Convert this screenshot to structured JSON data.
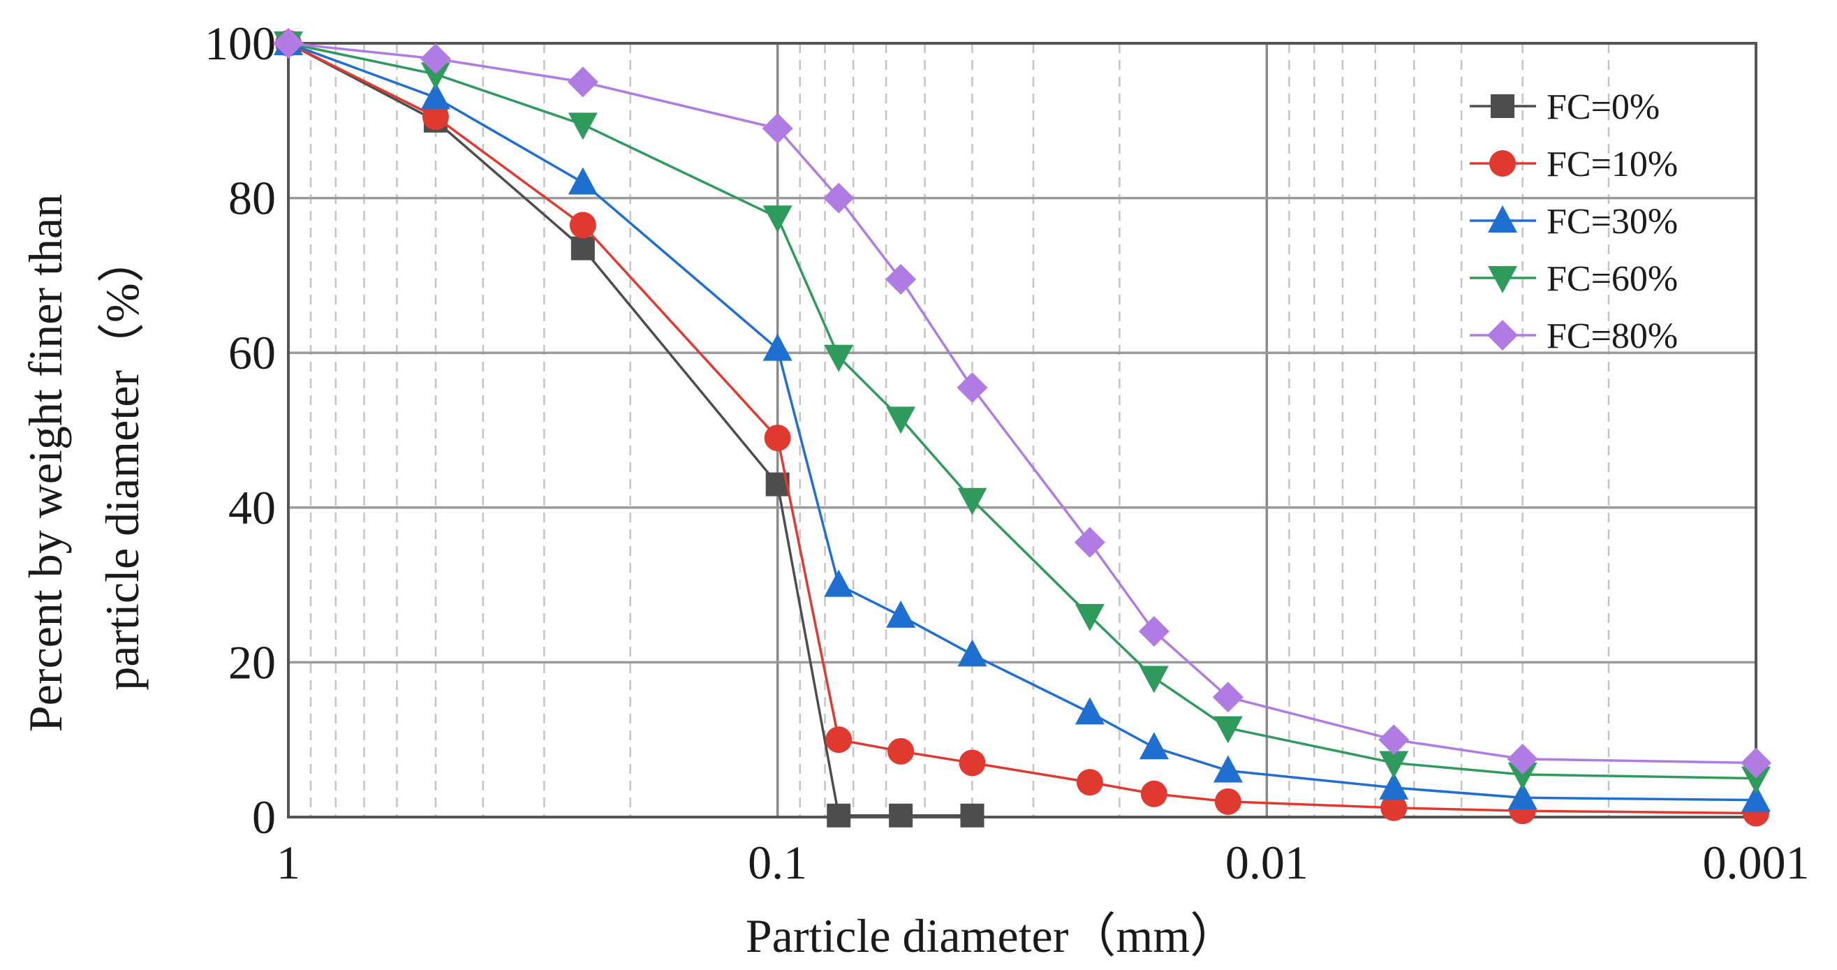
{
  "chart_data": {
    "type": "line",
    "xscale": "log",
    "xlim": [
      1,
      0.001
    ],
    "ylim": [
      0,
      100
    ],
    "x_reversed": true,
    "xlabel": "Particle diameter（mm）",
    "ylabel_lines": [
      "Percent by weight finer than",
      "particle diameter（%）"
    ],
    "x_ticks": [
      {
        "value": 1,
        "label": "1"
      },
      {
        "value": 0.1,
        "label": "0.1"
      },
      {
        "value": 0.01,
        "label": "0.01"
      },
      {
        "value": 0.001,
        "label": "0.001"
      }
    ],
    "y_ticks": [
      {
        "value": 0,
        "label": "0"
      },
      {
        "value": 20,
        "label": "20"
      },
      {
        "value": 40,
        "label": "40"
      },
      {
        "value": 60,
        "label": "60"
      },
      {
        "value": 80,
        "label": "80"
      },
      {
        "value": 100,
        "label": "100"
      }
    ],
    "grid": true,
    "legend_position": "top-right",
    "series": [
      {
        "name": "FC=0%",
        "color": "#4d4d4d",
        "marker": "square",
        "x": [
          1,
          0.5,
          0.25,
          0.1,
          0.075,
          0.056,
          0.04
        ],
        "y": [
          100,
          90,
          73.5,
          43,
          0.2,
          0.2,
          0.2
        ]
      },
      {
        "name": "FC=10%",
        "color": "#e03a30",
        "marker": "circle",
        "x": [
          1,
          0.5,
          0.25,
          0.1,
          0.075,
          0.056,
          0.04,
          0.023,
          0.017,
          0.012,
          0.0055,
          0.003,
          0.001
        ],
        "y": [
          100,
          90.5,
          76.5,
          49,
          10,
          8.5,
          7,
          4.5,
          3,
          2,
          1.2,
          0.8,
          0.5
        ]
      },
      {
        "name": "FC=30%",
        "color": "#1f6fd0",
        "marker": "triangle-up",
        "x": [
          1,
          0.5,
          0.25,
          0.1,
          0.075,
          0.056,
          0.04,
          0.023,
          0.017,
          0.012,
          0.0055,
          0.003,
          0.001
        ],
        "y": [
          100,
          93,
          82,
          60.5,
          30,
          26,
          21,
          13.5,
          9,
          6,
          3.8,
          2.5,
          2.2
        ]
      },
      {
        "name": "FC=60%",
        "color": "#2e9b5c",
        "marker": "triangle-down",
        "x": [
          1,
          0.5,
          0.25,
          0.1,
          0.075,
          0.056,
          0.04,
          0.023,
          0.017,
          0.012,
          0.0055,
          0.003,
          0.001
        ],
        "y": [
          100,
          96,
          89.5,
          77.5,
          59.5,
          51.5,
          41,
          26,
          18,
          11.5,
          7,
          5.5,
          5
        ]
      },
      {
        "name": "FC=80%",
        "color": "#b07be2",
        "marker": "diamond",
        "x": [
          1,
          0.5,
          0.25,
          0.1,
          0.075,
          0.056,
          0.04,
          0.023,
          0.017,
          0.012,
          0.0055,
          0.003,
          0.001
        ],
        "y": [
          100,
          98,
          95,
          89,
          80,
          69.5,
          55.5,
          35.5,
          24,
          15.5,
          10,
          7.5,
          7
        ]
      }
    ]
  }
}
